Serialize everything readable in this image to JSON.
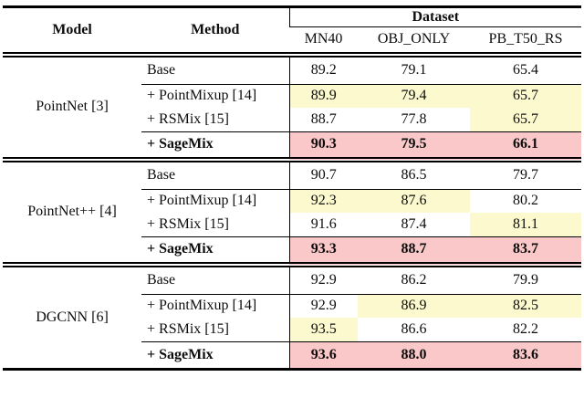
{
  "colors": {
    "highlight_yellow": "#fbf9cd",
    "highlight_pink": "#fac8c8",
    "rule": "#000000",
    "background": "#ffffff"
  },
  "table": {
    "header": {
      "model": "Model",
      "method": "Method",
      "dataset_group": "Dataset",
      "datasets": [
        "MN40",
        "OBJ_ONLY",
        "PB_T50_RS"
      ]
    },
    "groups": [
      {
        "model": "PointNet [3]",
        "rows": [
          {
            "method": "Base",
            "values": [
              "89.2",
              "79.1",
              "65.4"
            ],
            "highlights": [
              null,
              null,
              null
            ]
          },
          {
            "method": "+ PointMixup [14]",
            "values": [
              "89.9",
              "79.4",
              "65.7"
            ],
            "highlights": [
              "yellow",
              "yellow",
              "yellow"
            ]
          },
          {
            "method": "+ RSMix [15]",
            "values": [
              "88.7",
              "77.8",
              "65.7"
            ],
            "highlights": [
              null,
              null,
              "yellow"
            ]
          },
          {
            "method": "+ SageMix",
            "values": [
              "90.3",
              "79.5",
              "66.1"
            ],
            "highlights": [
              "pink",
              "pink",
              "pink"
            ]
          }
        ]
      },
      {
        "model": "PointNet++ [4]",
        "rows": [
          {
            "method": "Base",
            "values": [
              "90.7",
              "86.5",
              "79.7"
            ],
            "highlights": [
              null,
              null,
              null
            ]
          },
          {
            "method": "+ PointMixup [14]",
            "values": [
              "92.3",
              "87.6",
              "80.2"
            ],
            "highlights": [
              "yellow",
              "yellow",
              null
            ]
          },
          {
            "method": "+ RSMix [15]",
            "values": [
              "91.6",
              "87.4",
              "81.1"
            ],
            "highlights": [
              null,
              null,
              "yellow"
            ]
          },
          {
            "method": "+ SageMix",
            "values": [
              "93.3",
              "88.7",
              "83.7"
            ],
            "highlights": [
              "pink",
              "pink",
              "pink"
            ]
          }
        ]
      },
      {
        "model": "DGCNN [6]",
        "rows": [
          {
            "method": "Base",
            "values": [
              "92.9",
              "86.2",
              "79.9"
            ],
            "highlights": [
              null,
              null,
              null
            ]
          },
          {
            "method": "+ PointMixup [14]",
            "values": [
              "92.9",
              "86.9",
              "82.5"
            ],
            "highlights": [
              null,
              "yellow",
              "yellow"
            ]
          },
          {
            "method": "+ RSMix [15]",
            "values": [
              "93.5",
              "86.6",
              "82.2"
            ],
            "highlights": [
              "yellow",
              null,
              null
            ]
          },
          {
            "method": "+ SageMix",
            "values": [
              "93.6",
              "88.0",
              "83.6"
            ],
            "highlights": [
              "pink",
              "pink",
              "pink"
            ]
          }
        ]
      }
    ]
  }
}
